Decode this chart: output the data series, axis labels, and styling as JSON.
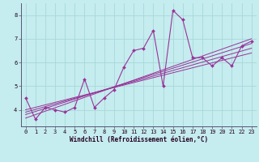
{
  "xlabel": "Windchill (Refroidissement éolien,°C)",
  "bg_color": "#c5ecee",
  "line_color": "#993399",
  "xlim": [
    -0.5,
    23.5
  ],
  "ylim": [
    3.3,
    8.5
  ],
  "yticks": [
    4,
    5,
    6,
    7,
    8
  ],
  "xticks": [
    0,
    1,
    2,
    3,
    4,
    5,
    6,
    7,
    8,
    9,
    10,
    11,
    12,
    13,
    14,
    15,
    16,
    17,
    18,
    19,
    20,
    21,
    22,
    23
  ],
  "main_x": [
    0,
    1,
    2,
    3,
    4,
    5,
    6,
    7,
    8,
    9,
    10,
    11,
    12,
    13,
    14,
    15,
    16,
    17,
    18,
    19,
    20,
    21,
    22,
    23
  ],
  "main_y": [
    4.5,
    3.6,
    4.1,
    4.0,
    3.9,
    4.1,
    5.3,
    4.1,
    4.5,
    4.85,
    5.8,
    6.5,
    6.6,
    7.35,
    5.0,
    8.2,
    7.8,
    6.2,
    6.2,
    5.85,
    6.2,
    5.85,
    6.7,
    6.9
  ],
  "trend1_x": [
    0,
    23
  ],
  "trend1_y": [
    3.65,
    7.0
  ],
  "trend2_x": [
    0,
    23
  ],
  "trend2_y": [
    3.8,
    6.8
  ],
  "trend3_x": [
    0,
    23
  ],
  "trend3_y": [
    3.9,
    6.6
  ],
  "trend4_x": [
    0,
    23
  ],
  "trend4_y": [
    4.0,
    6.4
  ],
  "grid_color": "#a8d8da"
}
